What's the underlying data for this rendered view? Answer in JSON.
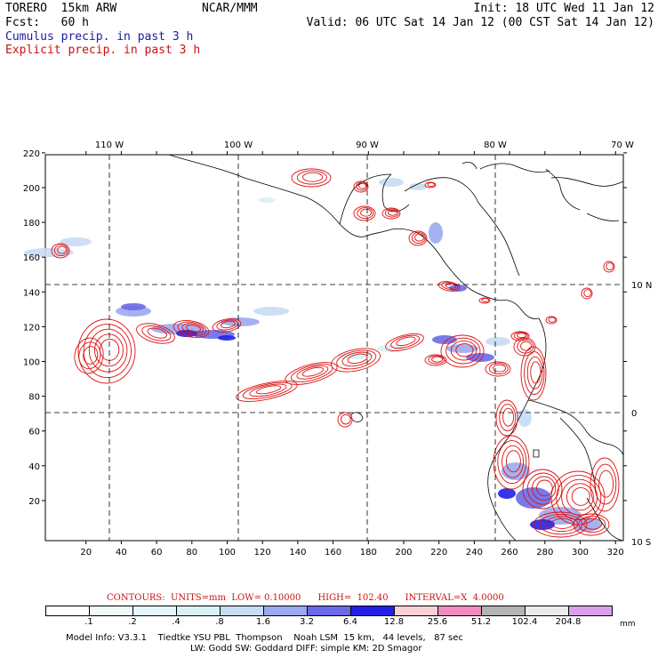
{
  "header": {
    "model": "TORERO  15km ARW",
    "center": "NCAR/MMM",
    "init": "Init: 18 UTC Wed 11 Jan 12",
    "fcst": "Fcst:   60 h",
    "valid": "Valid: 06 UTC Sat 14 Jan 12 (00 CST Sat 14 Jan 12)",
    "field1": "Cumulus precip. in past 3 h",
    "field2": "Explicit precip. in past 3 h"
  },
  "colors": {
    "cumulus_label": "#1a1aa6",
    "explicit_label": "#cc1111",
    "contour": "#dd1111",
    "coast": "#000000"
  },
  "axes": {
    "top_lon_labels": [
      "110 W",
      "100 W",
      "90 W",
      "80 W",
      "70 W"
    ],
    "right_lat_labels": [
      "10 N",
      "0",
      "10 S"
    ],
    "x_ticks": [
      "20",
      "40",
      "60",
      "80",
      "100",
      "120",
      "140",
      "160",
      "180",
      "200",
      "220",
      "240",
      "260",
      "280",
      "300",
      "320"
    ],
    "y_ticks": [
      "220",
      "200",
      "180",
      "160",
      "140",
      "120",
      "100",
      "80",
      "60",
      "40",
      "20"
    ]
  },
  "contour_info": "CONTOURS:  UNITS=mm  LOW= 0.10000      HIGH=  102.40      INTERVAL=X  4.0000",
  "legend": {
    "colors": [
      "#ffffff",
      "#f0fafa",
      "#e4f6f6",
      "#d8f2f4",
      "#c8dcf4",
      "#9ca8f0",
      "#6a6ae8",
      "#2020e6",
      "#f8d0d8",
      "#f08cbc",
      "#b4b4b4",
      "#ebebeb",
      "#d8a0ec"
    ],
    "labels": [
      ".1",
      ".2",
      ".4",
      ".8",
      "1.6",
      "3.2",
      "6.4",
      "12.8",
      "25.6",
      "51.2",
      "102.4",
      "204.8"
    ],
    "unit": "mm"
  },
  "footer": {
    "line1": "Model Info: V3.3.1    Tiedtke YSU PBL  Thompson    Noah LSM  15 km,   44 levels,   87 sec",
    "line2": "LW: Godd SW: Goddard DIFF: simple KM: 2D Smagor"
  }
}
